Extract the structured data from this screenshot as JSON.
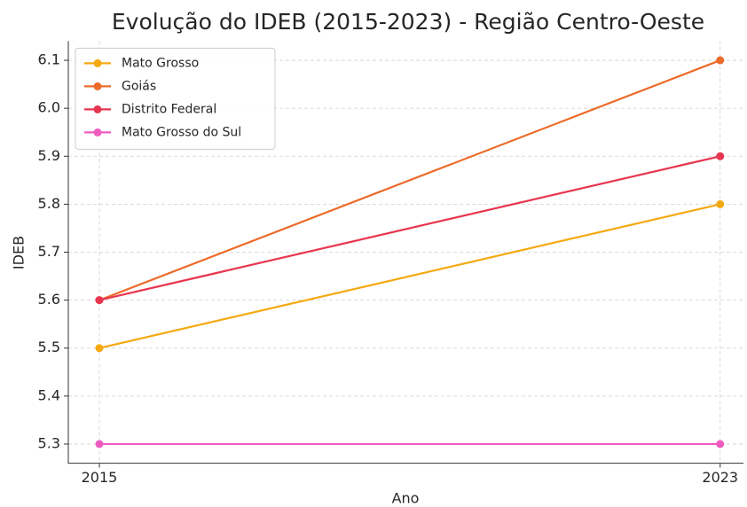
{
  "chart_data": {
    "type": "line",
    "title": "Evolução do IDEB (2015-2023) - Região Centro-Oeste",
    "x_label": "Ano",
    "y_label": "IDEB",
    "x": [
      2015,
      2023
    ],
    "series": [
      {
        "name": "Mato Grosso",
        "color": "#f5a911",
        "values": [
          5.5,
          5.8
        ]
      },
      {
        "name": "Goiás",
        "color": "#eb6b2a",
        "values": [
          5.6,
          6.1
        ]
      },
      {
        "name": "Distrito Federal",
        "color": "#e8354f",
        "values": [
          5.6,
          5.9
        ]
      },
      {
        "name": "Mato Grosso do Sul",
        "color": "#ef5cc0",
        "values": [
          5.3,
          5.3
        ]
      }
    ],
    "xlim": [
      2014.6,
      2023.3
    ],
    "xticks": [
      2015,
      2023
    ],
    "ylim": [
      5.26,
      6.14
    ],
    "yticks": [
      5.3,
      5.4,
      5.5,
      5.6,
      5.7,
      5.8,
      5.9,
      {
        "value": 6,
        "label": "6.0"
      },
      6.1
    ],
    "grid": true,
    "legend": "upper left"
  }
}
